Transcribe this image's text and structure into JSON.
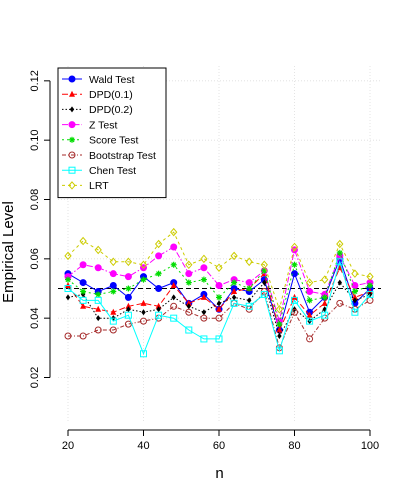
{
  "chart_data": {
    "type": "line",
    "xlabel": "n",
    "ylabel": "Empirical Level",
    "xlim": [
      20,
      100
    ],
    "ylim": [
      0.005,
      0.125
    ],
    "x_ticks": [
      20,
      40,
      60,
      80,
      100
    ],
    "y_ticks": [
      0.02,
      0.04,
      0.06,
      0.08,
      0.1,
      0.12
    ],
    "x_tick_labels": [
      "20",
      "40",
      "60",
      "80",
      "100"
    ],
    "y_tick_labels": [
      "0.02",
      "0.04",
      "0.06",
      "0.08",
      "0.10",
      "0.12"
    ],
    "grid": true,
    "legend_position": "top-left",
    "reference_line": 0.05,
    "x": [
      20,
      24,
      28,
      32,
      36,
      40,
      44,
      48,
      52,
      56,
      60,
      64,
      68,
      72,
      76,
      80,
      84,
      88,
      92,
      96,
      100
    ],
    "series": [
      {
        "name": "Wald Test",
        "color": "#0000ff",
        "dash": "",
        "marker": "circle-filled",
        "values": [
          0.055,
          0.052,
          0.049,
          0.051,
          0.047,
          0.054,
          0.05,
          0.052,
          0.045,
          0.048,
          0.043,
          0.05,
          0.049,
          0.053,
          0.036,
          0.055,
          0.042,
          0.047,
          0.06,
          0.045,
          0.05
        ]
      },
      {
        "name": "DPD(0.1)",
        "color": "#ff0000",
        "dash": "6,3",
        "marker": "triangle-filled",
        "values": [
          0.051,
          0.044,
          0.043,
          0.042,
          0.044,
          0.045,
          0.044,
          0.051,
          0.045,
          0.047,
          0.043,
          0.049,
          0.05,
          0.055,
          0.036,
          0.047,
          0.041,
          0.045,
          0.057,
          0.047,
          0.049
        ]
      },
      {
        "name": "DPD(0.2)",
        "color": "#000000",
        "dash": "1.5,2",
        "marker": "diamond-filled",
        "values": [
          0.047,
          0.048,
          0.04,
          0.04,
          0.043,
          0.042,
          0.043,
          0.047,
          0.044,
          0.042,
          0.045,
          0.047,
          0.046,
          0.052,
          0.034,
          0.043,
          0.039,
          0.043,
          0.052,
          0.046,
          0.048
        ]
      },
      {
        "name": "Z Test",
        "color": "#ff00ff",
        "dash": "6,2,1.5,2",
        "marker": "circle-filled",
        "values": [
          0.054,
          0.058,
          0.057,
          0.055,
          0.054,
          0.057,
          0.061,
          0.064,
          0.055,
          0.057,
          0.051,
          0.053,
          0.052,
          0.056,
          0.039,
          0.063,
          0.049,
          0.048,
          0.061,
          0.051,
          0.052
        ]
      },
      {
        "name": "Score Test",
        "color": "#00dd00",
        "dash": "2,3",
        "marker": "star",
        "values": [
          0.053,
          0.049,
          0.048,
          0.049,
          0.05,
          0.053,
          0.055,
          0.058,
          0.052,
          0.053,
          0.047,
          0.052,
          0.05,
          0.056,
          0.038,
          0.058,
          0.046,
          0.047,
          0.062,
          0.049,
          0.051
        ]
      },
      {
        "name": "Bootstrap Test",
        "color": "#a52a2a",
        "dash": "4,2,1,2",
        "marker": "circle-open",
        "values": [
          0.034,
          0.034,
          0.036,
          0.036,
          0.038,
          0.039,
          0.04,
          0.044,
          0.042,
          0.04,
          0.04,
          0.045,
          0.043,
          0.049,
          0.03,
          0.042,
          0.033,
          0.04,
          0.045,
          0.043,
          0.046
        ]
      },
      {
        "name": "Chen Test",
        "color": "#00ffff",
        "dash": "",
        "marker": "square-open",
        "values": [
          0.05,
          0.046,
          0.046,
          0.039,
          0.041,
          0.028,
          0.041,
          0.04,
          0.036,
          0.033,
          0.033,
          0.045,
          0.044,
          0.048,
          0.029,
          0.046,
          0.039,
          0.041,
          0.059,
          0.042,
          0.048
        ]
      },
      {
        "name": "LRT",
        "color": "#cccc00",
        "dash": "3,3",
        "marker": "diamond-open",
        "values": [
          0.061,
          0.066,
          0.063,
          0.059,
          0.059,
          0.058,
          0.065,
          0.069,
          0.058,
          0.06,
          0.057,
          0.061,
          0.059,
          0.058,
          0.043,
          0.064,
          0.052,
          0.053,
          0.065,
          0.055,
          0.054
        ]
      }
    ]
  }
}
